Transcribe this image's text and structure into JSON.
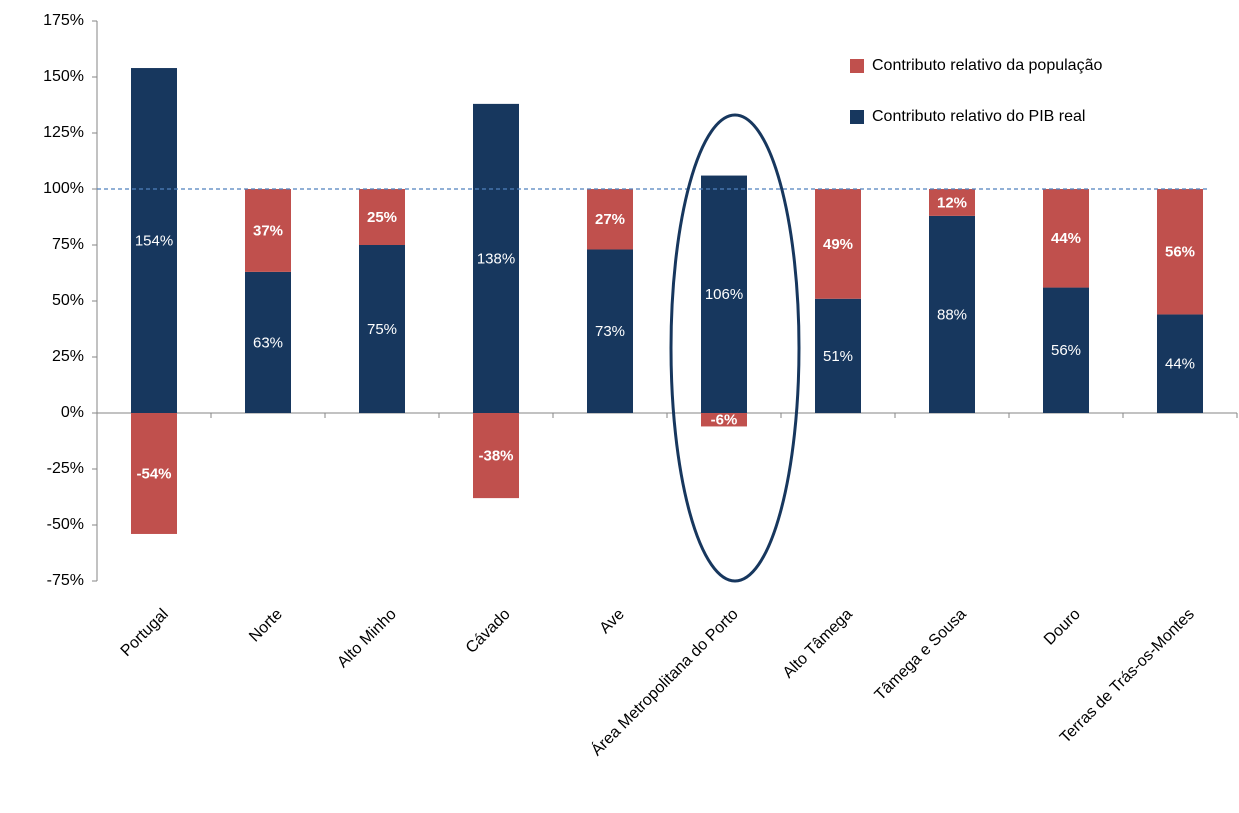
{
  "chart_data": {
    "type": "stacked-bar",
    "categories": [
      "Portugal",
      "Norte",
      "Alto Minho",
      "Cávado",
      "Ave",
      "Área Metropolitana do Porto",
      "Alto Tâmega",
      "Tâmega e Sousa",
      "Douro",
      "Terras de Trás-os-Montes"
    ],
    "series": [
      {
        "name": "Contributo relativo do PIB real",
        "color": "#17375e",
        "values": [
          154,
          63,
          75,
          138,
          73,
          106,
          51,
          88,
          56,
          44
        ],
        "value_labels": [
          "154%",
          "63%",
          "75%",
          "138%",
          "73%",
          "106%",
          "51%",
          "88%",
          "56%",
          "44%"
        ]
      },
      {
        "name": "Contributo relativo da população",
        "color": "#c0504d",
        "values": [
          -54,
          37,
          25,
          -38,
          27,
          -6,
          49,
          12,
          44,
          56
        ],
        "value_labels": [
          "-54%",
          "37%",
          "25%",
          "-38%",
          "27%",
          "-6%",
          "49%",
          "12%",
          "44%",
          "56%"
        ]
      }
    ],
    "ylim": [
      -75,
      175
    ],
    "yticks": [
      {
        "value": -75,
        "label": "-75%"
      },
      {
        "value": -50,
        "label": "-50%"
      },
      {
        "value": -25,
        "label": "-25%"
      },
      {
        "value": 0,
        "label": "0%"
      },
      {
        "value": 25,
        "label": "25%"
      },
      {
        "value": 50,
        "label": "50%"
      },
      {
        "value": 75,
        "label": "75%"
      },
      {
        "value": 100,
        "label": "100%"
      },
      {
        "value": 125,
        "label": "125%"
      },
      {
        "value": 150,
        "label": "150%"
      },
      {
        "value": 175,
        "label": "175%"
      }
    ],
    "reference_line": 100,
    "reference_line_color": "#4f81bd",
    "legend": "top-right"
  }
}
